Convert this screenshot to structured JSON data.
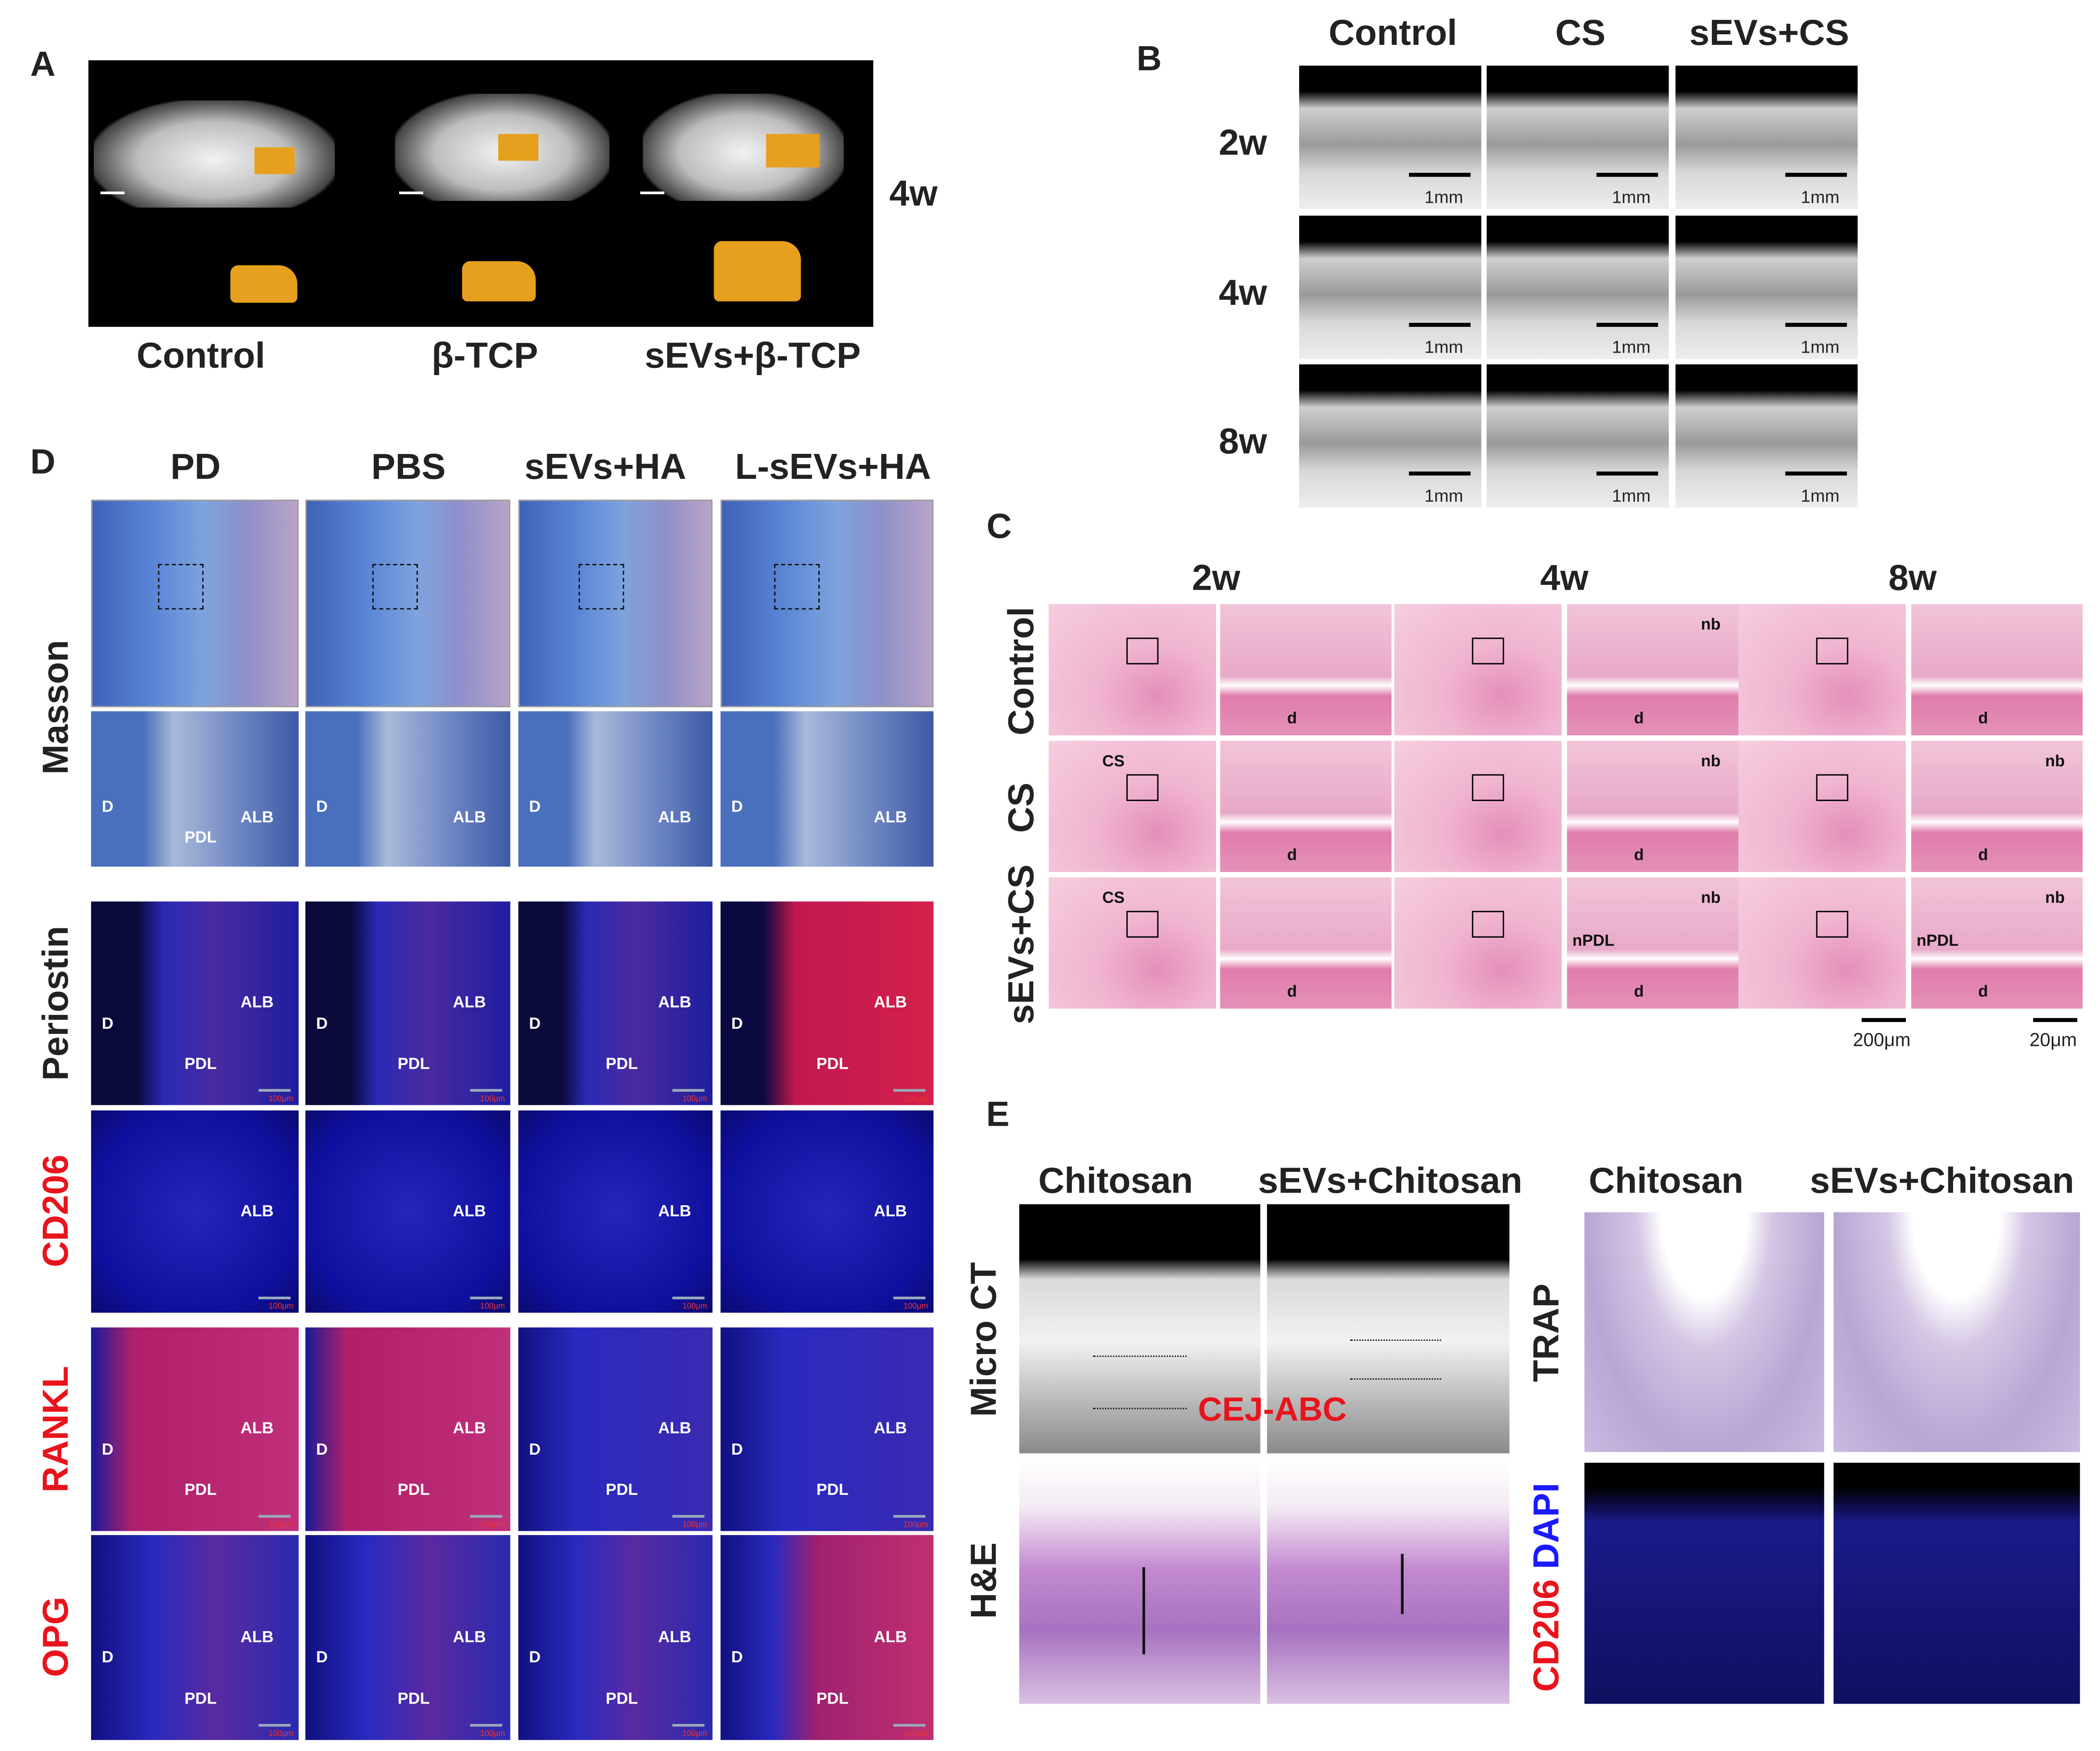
{
  "panelA": {
    "label": "A",
    "timepoint": "4w",
    "columns": [
      "Control",
      "β-TCP",
      "sEVs+β-TCP"
    ]
  },
  "panelB": {
    "label": "B",
    "columns": [
      "Control",
      "CS",
      "sEVs+CS"
    ],
    "rows": [
      "2w",
      "4w",
      "8w"
    ],
    "scale": "1mm"
  },
  "panelC": {
    "label": "C",
    "columns": [
      "2w",
      "4w",
      "8w"
    ],
    "rows": [
      "Control",
      "CS",
      "sEVs+CS"
    ],
    "scale_bars": [
      "200μm",
      "20μm"
    ],
    "tile_labels": [
      [
        [],
        [
          "d"
        ],
        [],
        [
          "nb",
          "d"
        ],
        [],
        [
          "d"
        ]
      ],
      [
        [
          "CS"
        ],
        [
          "d"
        ],
        [],
        [
          "nb",
          "d"
        ],
        [],
        [
          "nb",
          "d"
        ]
      ],
      [
        [
          "CS"
        ],
        [
          "d"
        ],
        [],
        [
          "nb",
          "nPDL",
          "d"
        ],
        [],
        [
          "nb",
          "nPDL",
          "d"
        ]
      ]
    ]
  },
  "panelD": {
    "label": "D",
    "columns": [
      "PD",
      "PBS",
      "sEVs+HA",
      "L-sEVs+HA"
    ],
    "rows": [
      "Masson",
      "",
      "Periostin",
      "CD206",
      "RANKL",
      "OPG"
    ],
    "scale": "100μm",
    "tile_labels": [
      [
        [],
        [],
        [],
        []
      ],
      [
        [
          "D",
          "PDL",
          "ALB"
        ],
        [
          "D",
          "ALB"
        ],
        [
          "D",
          "ALB"
        ],
        [
          "D",
          "ALB"
        ]
      ],
      [
        [
          "D",
          "ALB",
          "PDL"
        ],
        [
          "D",
          "ALB",
          "PDL"
        ],
        [
          "D",
          "ALB",
          "PDL"
        ],
        [
          "D",
          "ALB",
          "PDL"
        ]
      ],
      [
        [
          "ALB"
        ],
        [
          "ALB"
        ],
        [
          "ALB"
        ],
        [
          "ALB"
        ]
      ],
      [
        [
          "D",
          "ALB",
          "PDL"
        ],
        [
          "D",
          "ALB",
          "PDL"
        ],
        [
          "D",
          "ALB",
          "PDL"
        ],
        [
          "D",
          "ALB",
          "PDL"
        ]
      ],
      [
        [
          "D",
          "ALB",
          "PDL"
        ],
        [
          "D",
          "ALB",
          "PDL"
        ],
        [
          "D",
          "ALB",
          "PDL"
        ],
        [
          "D",
          "ALB",
          "PDL"
        ]
      ]
    ]
  },
  "panelE": {
    "label": "E",
    "left_columns": [
      "Chitosan",
      "sEVs+Chitosan"
    ],
    "right_columns": [
      "Chitosan",
      "sEVs+Chitosan"
    ],
    "left_rows": [
      "Micro CT",
      "H&E"
    ],
    "right_rows": [
      "TRAP"
    ],
    "stain_red": "CD206",
    "stain_blue": "DAPI",
    "measure": "CEJ-ABC"
  },
  "colors": {
    "red": "#e8141c",
    "blue": "#1a1aff",
    "bone": "#e6a01e"
  }
}
